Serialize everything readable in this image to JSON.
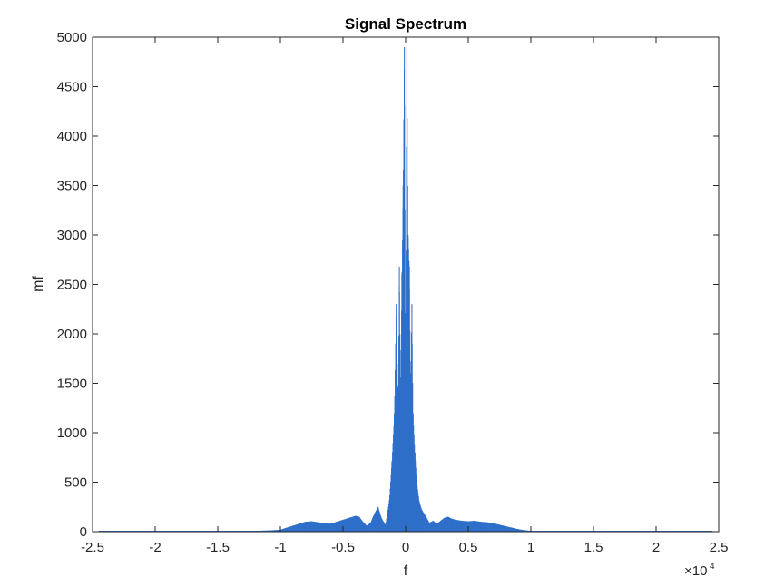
{
  "chart_data": {
    "type": "line",
    "title": "Signal Spectrum",
    "xlabel": "f",
    "ylabel": "mf",
    "x_exponent_label": "×10",
    "x_exponent_power": "4",
    "xlim": [
      -2.5,
      2.5
    ],
    "ylim": [
      0,
      5000
    ],
    "x_ticks": [
      -2.5,
      -2,
      -1.5,
      -1,
      -0.5,
      0,
      0.5,
      1,
      1.5,
      2,
      2.5
    ],
    "x_tick_labels": [
      "-2.5",
      "-2",
      "-1.5",
      "-1",
      "-0.5",
      "0",
      "0.5",
      "1",
      "1.5",
      "2",
      "2.5"
    ],
    "y_ticks": [
      0,
      500,
      1000,
      1500,
      2000,
      2500,
      3000,
      3500,
      4000,
      4500,
      5000
    ],
    "y_tick_labels": [
      "0",
      "500",
      "1000",
      "1500",
      "2000",
      "2500",
      "3000",
      "3500",
      "4000",
      "4500",
      "5000"
    ],
    "grid": false,
    "line_color": "#2e6fc9",
    "series": [
      {
        "name": "",
        "x": [
          -2.45,
          -2.0,
          -1.5,
          -1.2,
          -1.05,
          -1.0,
          -0.95,
          -0.9,
          -0.85,
          -0.8,
          -0.75,
          -0.7,
          -0.65,
          -0.6,
          -0.55,
          -0.5,
          -0.45,
          -0.4,
          -0.37,
          -0.34,
          -0.31,
          -0.28,
          -0.25,
          -0.22,
          -0.19,
          -0.16,
          -0.13,
          -0.11,
          -0.09,
          -0.075,
          -0.06,
          -0.05,
          -0.04,
          -0.03,
          -0.02,
          -0.01,
          0.0,
          0.01,
          0.02,
          0.03,
          0.04,
          0.05,
          0.06,
          0.075,
          0.09,
          0.11,
          0.13,
          0.16,
          0.19,
          0.22,
          0.25,
          0.28,
          0.31,
          0.34,
          0.37,
          0.4,
          0.45,
          0.5,
          0.55,
          0.6,
          0.65,
          0.7,
          0.75,
          0.8,
          0.85,
          0.9,
          0.95,
          1.0,
          1.05,
          1.2,
          1.5,
          2.0,
          2.45
        ],
        "y": [
          3,
          4,
          5,
          8,
          15,
          20,
          40,
          60,
          80,
          100,
          105,
          95,
          85,
          80,
          100,
          120,
          140,
          160,
          150,
          100,
          60,
          90,
          180,
          250,
          130,
          70,
          320,
          700,
          1200,
          2300,
          1300,
          2680,
          1500,
          2600,
          3500,
          4900,
          2000,
          4900,
          3000,
          2680,
          1500,
          2300,
          1200,
          800,
          500,
          300,
          220,
          160,
          90,
          110,
          80,
          110,
          140,
          150,
          130,
          120,
          110,
          105,
          110,
          100,
          95,
          85,
          70,
          55,
          40,
          25,
          15,
          8,
          5,
          4,
          3,
          3,
          2
        ]
      }
    ]
  }
}
